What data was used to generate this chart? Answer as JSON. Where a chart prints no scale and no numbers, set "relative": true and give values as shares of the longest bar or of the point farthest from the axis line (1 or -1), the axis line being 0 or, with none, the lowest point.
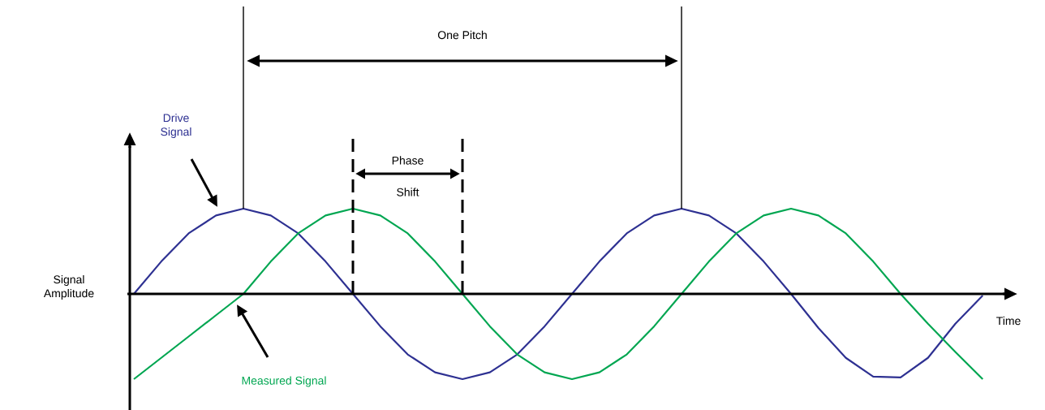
{
  "chart_data": {
    "type": "line",
    "relative": true,
    "xlabel": "Time",
    "ylabel": "Signal Amplitude",
    "annotations": [
      "One Pitch",
      "Phase Shift"
    ],
    "categories": [
      null,
      null,
      null,
      null,
      null,
      null,
      null,
      null,
      null,
      null,
      null,
      null,
      null,
      null,
      null,
      null,
      null,
      null,
      null,
      null,
      null,
      null,
      null,
      null,
      null,
      null,
      null,
      null,
      null,
      null,
      null,
      null
    ],
    "series": [
      {
        "name": "Drive Signal",
        "color": "#2e3192",
        "values": [
          0,
          0.38,
          0.71,
          0.92,
          1,
          0.92,
          0.71,
          0.38,
          0,
          -0.38,
          -0.71,
          -0.92,
          -1,
          -0.92,
          -0.71,
          -0.38,
          0,
          0.38,
          0.71,
          0.92,
          1,
          0.92,
          0.71,
          0.38,
          0,
          -0.4,
          -0.75,
          -0.97,
          -0.98,
          -0.75,
          -0.35,
          -0.02
        ]
      },
      {
        "name": "Measured Signal",
        "color": "#00a651",
        "values": [
          -1,
          -0.75,
          -0.5,
          -0.25,
          0,
          0.38,
          0.71,
          0.92,
          1,
          0.92,
          0.71,
          0.38,
          0,
          -0.38,
          -0.71,
          -0.92,
          -1,
          -0.92,
          -0.71,
          -0.38,
          0,
          0.38,
          0.71,
          0.92,
          1,
          0.92,
          0.71,
          0.38,
          0,
          -0.35,
          -0.68,
          -1
        ]
      }
    ]
  }
}
